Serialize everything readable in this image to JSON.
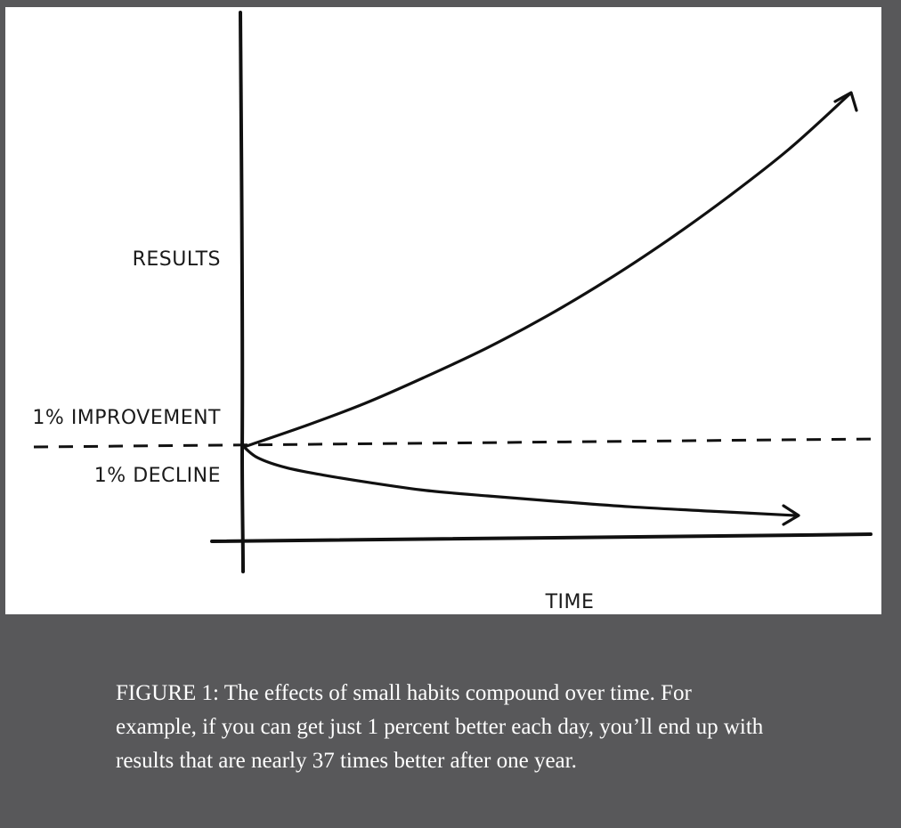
{
  "chart_data": {
    "type": "line",
    "xlabel": "TIME",
    "ylabel": "RESULTS",
    "grid": false,
    "legend": "none",
    "baseline_label_above": "1% IMPROVEMENT",
    "baseline_label_below": "1% DECLINE",
    "series": [
      {
        "name": "1% IMPROVEMENT",
        "x": [
          0,
          0.1,
          0.2,
          0.3,
          0.4,
          0.5,
          0.6,
          0.7,
          0.8,
          0.9,
          1.0
        ],
        "y": [
          1.0,
          1.11,
          1.23,
          1.37,
          1.52,
          1.69,
          1.88,
          2.09,
          2.32,
          2.57,
          2.86
        ]
      },
      {
        "name": "1% DECLINE",
        "x": [
          0,
          0.1,
          0.2,
          0.3,
          0.4,
          0.5,
          0.6,
          0.7,
          0.8,
          0.9,
          1.0
        ],
        "y": [
          1.0,
          0.9,
          0.81,
          0.74,
          0.67,
          0.6,
          0.55,
          0.5,
          0.45,
          0.41,
          0.37
        ]
      }
    ],
    "baseline": 1.0
  },
  "caption": {
    "text": "FIGURE 1: The effects of small habits compound over time. For example, if you can get just 1 percent better each day, you’ll end up with results that are nearly 37 times better after one year."
  }
}
